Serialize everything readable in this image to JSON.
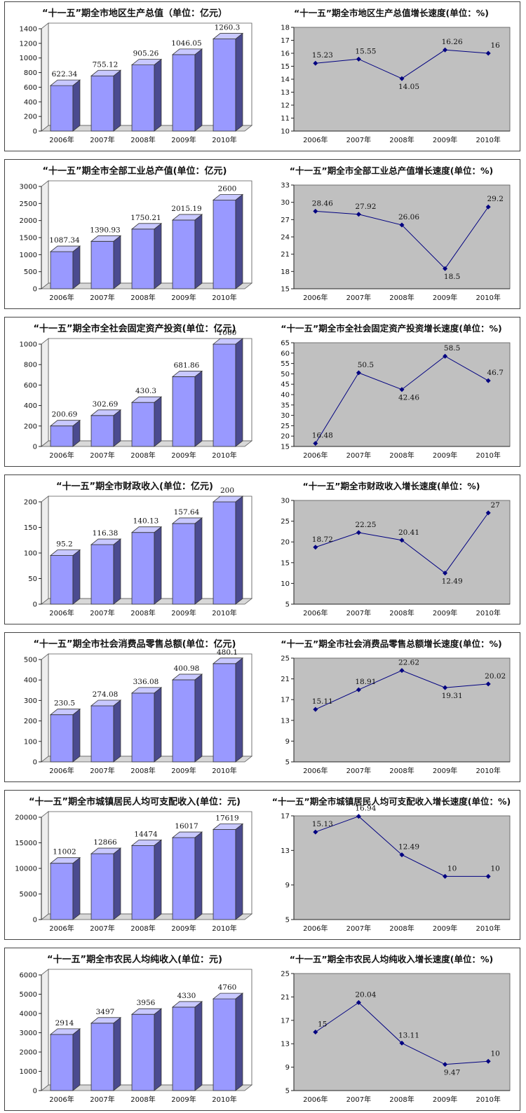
{
  "chart_data": [
    {
      "type": "bar",
      "panel": 1,
      "title": "“十一五”期全市地区生产总值（单位：亿元）",
      "categories": [
        "2006年",
        "2007年",
        "2008年",
        "2009年",
        "2010年"
      ],
      "values": [
        622.34,
        755.12,
        905.26,
        1046.05,
        1260.3
      ],
      "labels": [
        "622.34",
        "755.12",
        "905.26",
        "1046.05",
        "1260.3"
      ],
      "ylim": [
        0,
        1400
      ],
      "yticks": [
        0,
        200,
        400,
        600,
        800,
        1000,
        1200,
        1400
      ]
    },
    {
      "type": "line",
      "panel": 1,
      "title": "“十一五”期全市地区生产总值增长速度(单位：%)",
      "categories": [
        "2006年",
        "2007年",
        "2008年",
        "2009年",
        "2010年"
      ],
      "values": [
        15.23,
        15.55,
        14.05,
        16.26,
        16
      ],
      "labels": [
        "15.23",
        "15.55",
        "14.05",
        "16.26",
        "16"
      ],
      "ylim": [
        10,
        18
      ],
      "yticks": [
        10,
        11,
        12,
        13,
        14,
        15,
        16,
        17,
        18
      ]
    },
    {
      "type": "bar",
      "panel": 2,
      "title": "“十一五”期全市全部工业总产值(单位：亿元)",
      "categories": [
        "2006年",
        "2007年",
        "2008年",
        "2009年",
        "2010年"
      ],
      "values": [
        1087.34,
        1390.93,
        1750.21,
        2015.19,
        2600
      ],
      "labels": [
        "1087.34",
        "1390.93",
        "1750.21",
        "2015.19",
        "2600"
      ],
      "ylim": [
        0,
        3000
      ],
      "yticks": [
        0,
        500,
        1000,
        1500,
        2000,
        2500,
        3000
      ]
    },
    {
      "type": "line",
      "panel": 2,
      "title": "“十一五”期全市全部工业总产值增长速度(单位：%)",
      "categories": [
        "2006年",
        "2007年",
        "2008年",
        "2009年",
        "2010年"
      ],
      "values": [
        28.46,
        27.92,
        26.06,
        18.5,
        29.2
      ],
      "labels": [
        "28.46",
        "27.92",
        "26.06",
        "18.5",
        "29.2"
      ],
      "ylim": [
        15,
        33
      ],
      "yticks": [
        15,
        18,
        21,
        24,
        27,
        30,
        33
      ]
    },
    {
      "type": "bar",
      "panel": 3,
      "title": "“十一五”期全市全社会固定资产投资(单位：亿元)",
      "categories": [
        "2006年",
        "2007年",
        "2008年",
        "2009年",
        "2010年"
      ],
      "values": [
        200.69,
        302.69,
        430.3,
        681.86,
        1000
      ],
      "labels": [
        "200.69",
        "302.69",
        "430.3",
        "681.86",
        "1000"
      ],
      "ylim": [
        0,
        1000
      ],
      "yticks": [
        0,
        200,
        400,
        600,
        800,
        1000
      ]
    },
    {
      "type": "line",
      "panel": 3,
      "title": "“十一五”期全市全社会固定资产投资增长速度(单位：%)",
      "categories": [
        "2006年",
        "2007年",
        "2008年",
        "2009年",
        "2010年"
      ],
      "values": [
        16.48,
        50.5,
        42.46,
        58.5,
        46.7
      ],
      "labels": [
        "16.48",
        "50.5",
        "42.46",
        "58.5",
        "46.7"
      ],
      "ylim": [
        15,
        65
      ],
      "yticks": [
        15,
        20,
        25,
        30,
        35,
        40,
        45,
        50,
        55,
        60,
        65
      ]
    },
    {
      "type": "bar",
      "panel": 4,
      "title": "“十一五”期全市财政收入(单位：亿元)",
      "categories": [
        "2006年",
        "2007年",
        "2008年",
        "2009年",
        "2010年"
      ],
      "values": [
        95.2,
        116.38,
        140.13,
        157.64,
        200
      ],
      "labels": [
        "95.2",
        "116.38",
        "140.13",
        "157.64",
        "200"
      ],
      "ylim": [
        0,
        200
      ],
      "yticks": [
        0,
        50,
        100,
        150,
        200
      ]
    },
    {
      "type": "line",
      "panel": 4,
      "title": "“十一五”期全市财政收入增长速度(单位：%)",
      "categories": [
        "2006年",
        "2007年",
        "2008年",
        "2009年",
        "2010年"
      ],
      "values": [
        18.72,
        22.25,
        20.41,
        12.49,
        27
      ],
      "labels": [
        "18.72",
        "22.25",
        "20.41",
        "12.49",
        "27"
      ],
      "ylim": [
        5,
        30
      ],
      "yticks": [
        5,
        10,
        15,
        20,
        25,
        30
      ]
    },
    {
      "type": "bar",
      "panel": 5,
      "title": "“十一五”期全市社会消费品零售总额(单位：亿元)",
      "categories": [
        "2006年",
        "2007年",
        "2008年",
        "2009年",
        "2010年"
      ],
      "values": [
        230.5,
        274.08,
        336.08,
        400.98,
        480.1
      ],
      "labels": [
        "230.5",
        "274.08",
        "336.08",
        "400.98",
        "480.1"
      ],
      "ylim": [
        0,
        500
      ],
      "yticks": [
        0,
        100,
        200,
        300,
        400,
        500
      ]
    },
    {
      "type": "line",
      "panel": 5,
      "title": "“十一五”期全市社会消费品零售总额增长速度(单位：%)",
      "categories": [
        "2006年",
        "2007年",
        "2008年",
        "2009年",
        "2010年"
      ],
      "values": [
        15.11,
        18.91,
        22.62,
        19.31,
        20.02
      ],
      "labels": [
        "15.11",
        "18.91",
        "22.62",
        "19.31",
        "20.02"
      ],
      "ylim": [
        5,
        25
      ],
      "yticks": [
        5,
        9,
        13,
        17,
        21,
        25
      ]
    },
    {
      "type": "bar",
      "panel": 6,
      "title": "“十一五”期全市城镇居民人均可支配收入(单位：元)",
      "categories": [
        "2006年",
        "2007年",
        "2008年",
        "2009年",
        "2010年"
      ],
      "values": [
        11002,
        12866,
        14474,
        16017,
        17619
      ],
      "labels": [
        "11002",
        "12866",
        "14474",
        "16017",
        "17619"
      ],
      "ylim": [
        0,
        20000
      ],
      "yticks": [
        0,
        5000,
        10000,
        15000,
        20000
      ]
    },
    {
      "type": "line",
      "panel": 6,
      "title": "“十一五”期全市城镇居民人均可支配收入增长速度(单位：%)",
      "categories": [
        "2006年",
        "2007年",
        "2008年",
        "2009年",
        "2010年"
      ],
      "values": [
        15.13,
        16.94,
        12.49,
        10,
        10
      ],
      "labels": [
        "15.13",
        "16.94",
        "12.49",
        "10",
        "10"
      ],
      "ylim": [
        5,
        17
      ],
      "yticks": [
        5,
        9,
        13,
        17
      ]
    },
    {
      "type": "bar",
      "panel": 7,
      "title": "“十一五”期全市农民人均纯收入(单位：元)",
      "categories": [
        "2006年",
        "2007年",
        "2008年",
        "2009年",
        "2010年"
      ],
      "values": [
        2914,
        3497,
        3956,
        4330,
        4760
      ],
      "labels": [
        "2914",
        "3497",
        "3956",
        "4330",
        "4760"
      ],
      "ylim": [
        0,
        6000
      ],
      "yticks": [
        0,
        1000,
        2000,
        3000,
        4000,
        5000,
        6000
      ]
    },
    {
      "type": "line",
      "panel": 7,
      "title": "“十一五”期全市农民人均纯收入增长速度(单位：%)",
      "categories": [
        "2006年",
        "2007年",
        "2008年",
        "2009年",
        "2010年"
      ],
      "values": [
        15,
        20.04,
        13.11,
        9.47,
        10
      ],
      "labels": [
        "15",
        "20.04",
        "13.11",
        "9.47",
        "10"
      ],
      "ylim": [
        5,
        25
      ],
      "yticks": [
        5,
        9,
        13,
        17,
        21,
        25
      ]
    }
  ],
  "colors": {
    "bar_front": "#9999ff",
    "bar_side": "#4b4b8f",
    "bar_top": "#c8c8ff",
    "plot_bg": "#c0c0c0",
    "line": "#000080",
    "border": "#333333"
  }
}
